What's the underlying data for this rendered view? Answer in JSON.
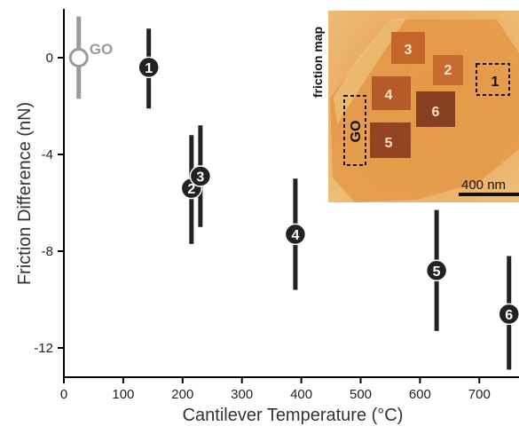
{
  "chart_data": {
    "type": "scatter",
    "xlabel": "Cantilever Temperature (°C)",
    "ylabel": "Friction Difference (nN)",
    "xlim": [
      0,
      760
    ],
    "ylim": [
      -13,
      2
    ],
    "x_ticks": [
      "0",
      "100",
      "200",
      "300",
      "400",
      "500",
      "600",
      "700"
    ],
    "y_ticks": [
      "0",
      "-4",
      "-8",
      "-12"
    ],
    "x_tick_values": [
      0,
      100,
      200,
      300,
      400,
      500,
      600,
      700
    ],
    "y_tick_values": [
      0,
      -4,
      -8,
      -12
    ],
    "reference": {
      "label": "GO",
      "x": 25,
      "y": 0,
      "err_low": -1.7,
      "err_high": 1.7,
      "color": "#9a9a9a"
    },
    "points": [
      {
        "label": "1",
        "x": 143,
        "y": -0.4,
        "err_low": -2.1,
        "err_high": 1.2
      },
      {
        "label": "2",
        "x": 215,
        "y": -5.4,
        "err_low": -7.7,
        "err_high": -3.2
      },
      {
        "label": "3",
        "x": 230,
        "y": -4.9,
        "err_low": -7.0,
        "err_high": -2.8
      },
      {
        "label": "4",
        "x": 390,
        "y": -7.3,
        "err_low": -9.6,
        "err_high": -5.0
      },
      {
        "label": "5",
        "x": 628,
        "y": -8.8,
        "err_low": -11.3,
        "err_high": -6.3
      },
      {
        "label": "6",
        "x": 750,
        "y": -10.6,
        "err_low": -12.9,
        "err_high": -8.2
      }
    ],
    "point_color": "#222222"
  },
  "inset": {
    "title": "friction map",
    "scalebar_label": "400 nm",
    "regions": [
      {
        "label": "1",
        "boxed": true
      },
      {
        "label": "2"
      },
      {
        "label": "3"
      },
      {
        "label": "4"
      },
      {
        "label": "5"
      },
      {
        "label": "6"
      },
      {
        "label": "GO",
        "boxed": true
      }
    ]
  }
}
